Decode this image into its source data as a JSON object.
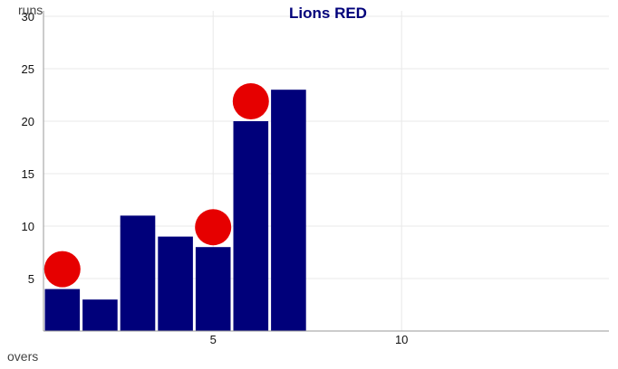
{
  "chart_data": {
    "type": "bar",
    "title": "Lions RED",
    "xlabel": "overs",
    "ylabel": "runs",
    "x": [
      1,
      2,
      3,
      4,
      5,
      6,
      7
    ],
    "values": [
      4,
      3,
      11,
      9,
      8,
      20,
      23
    ],
    "wicket_overs": [
      1,
      5,
      6
    ],
    "xlim": [
      0.5,
      15.5
    ],
    "ylim": [
      0,
      30
    ],
    "xticks": [
      5,
      10
    ],
    "yticks": [
      5,
      10,
      15,
      20,
      25,
      30
    ],
    "grid": true,
    "colors": {
      "bar": "#00007a",
      "wicket": "#e60000",
      "title": "#00007a",
      "grid": "#e8e8e8",
      "axis": "#9a9a9a"
    }
  }
}
